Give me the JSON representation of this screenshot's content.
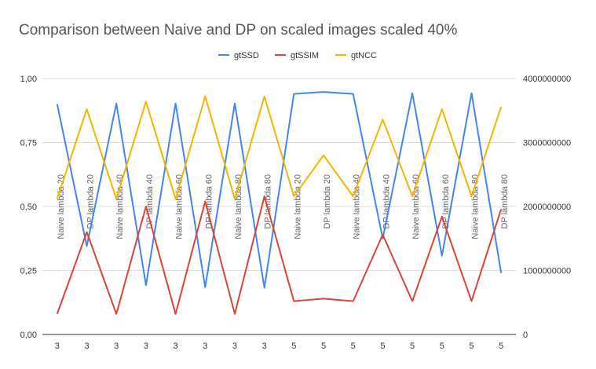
{
  "chart_data": {
    "type": "line",
    "title": "Comparison between Naive and DP on scaled images scaled 40%",
    "categories": [
      "3",
      "3",
      "3",
      "3",
      "3",
      "3",
      "3",
      "3",
      "5",
      "5",
      "5",
      "5",
      "5",
      "5",
      "5",
      "5"
    ],
    "category_labels": [
      "Naive lambda 20",
      "DP lambda 20",
      "Naive lambda 40",
      "DP lambda 40",
      "Naive lambda 60",
      "DP lambda 60",
      "Naive lambda 80",
      "DP lambda 80",
      "Naive lambda 20",
      "DP lambda 20",
      "Naive lambda 40",
      "DP lambda 40",
      "Naive lambda 60",
      "DP lambda 60",
      "Naive lambda 80",
      "DP lambda 80"
    ],
    "series": [
      {
        "name": "gtSSD",
        "color": "#4285f4",
        "axis": "right",
        "values": [
          3600000000,
          1380000000,
          3610000000,
          770000000,
          3610000000,
          740000000,
          3610000000,
          730000000,
          3760000000,
          3790000000,
          3760000000,
          1500000000,
          3770000000,
          1230000000,
          3770000000,
          960000000
        ]
      },
      {
        "name": "gtSSIM",
        "color": "#db4437",
        "axis": "left",
        "values": [
          0.08,
          0.4,
          0.08,
          0.5,
          0.08,
          0.52,
          0.08,
          0.54,
          0.13,
          0.14,
          0.13,
          0.39,
          0.13,
          0.46,
          0.13,
          0.49
        ]
      },
      {
        "name": "gtNCC",
        "color": "#f4b400",
        "axis": "left",
        "values": [
          0.53,
          0.88,
          0.53,
          0.91,
          0.53,
          0.93,
          0.53,
          0.93,
          0.54,
          0.7,
          0.54,
          0.84,
          0.54,
          0.88,
          0.54,
          0.89
        ]
      }
    ],
    "y_left": {
      "ylim": [
        0,
        1
      ],
      "ticks": [
        "0,00",
        "0,25",
        "0,50",
        "0,75",
        "1,00"
      ],
      "tick_values": [
        0,
        0.25,
        0.5,
        0.75,
        1
      ]
    },
    "y_right": {
      "ylim": [
        0,
        4000000000
      ],
      "ticks": [
        "0",
        "1000000000",
        "2000000000",
        "3000000000",
        "4000000000"
      ],
      "tick_values": [
        0,
        1000000000,
        2000000000,
        3000000000,
        4000000000
      ]
    },
    "grid": true,
    "legend_position": "top"
  }
}
